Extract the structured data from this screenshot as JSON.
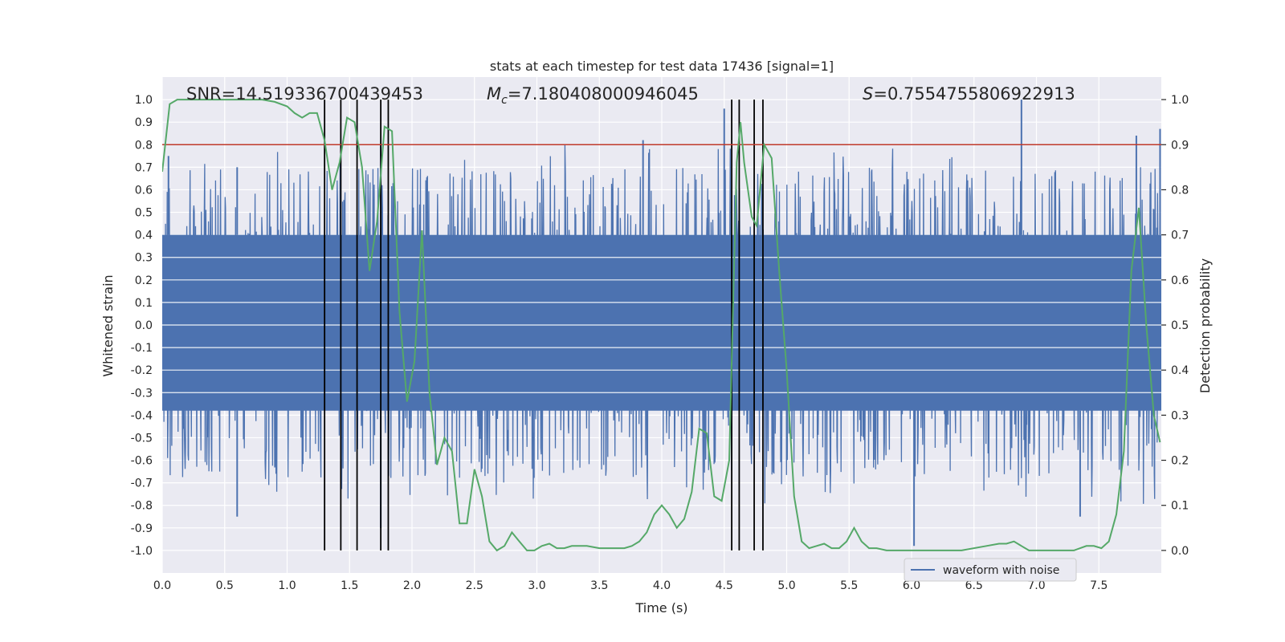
{
  "chart_data": {
    "type": "line",
    "title": "stats at each timestep for test data 17436 [signal=1]",
    "xlabel": "Time (s)",
    "ylabel": "Whitened strain",
    "y2label": "Detection probability",
    "xlim": [
      0.0,
      8.0
    ],
    "ylim": [
      -1.1,
      1.1
    ],
    "y2lim": [
      -0.05,
      1.05
    ],
    "x_ticks": [
      0.0,
      0.5,
      1.0,
      1.5,
      2.0,
      2.5,
      3.0,
      3.5,
      4.0,
      4.5,
      5.0,
      5.5,
      6.0,
      6.5,
      7.0,
      7.5
    ],
    "x_tick_labels": [
      "0.0",
      "0.5",
      "1.0",
      "1.5",
      "2.0",
      "2.5",
      "3.0",
      "3.5",
      "4.0",
      "4.5",
      "5.0",
      "5.5",
      "6.0",
      "6.5",
      "7.0",
      "7.5"
    ],
    "y_ticks": [
      1.0,
      0.9,
      0.8,
      0.7,
      0.6,
      0.5,
      0.4,
      0.3,
      0.2,
      0.1,
      0.0,
      -0.1,
      -0.2,
      -0.3,
      -0.4,
      -0.5,
      -0.6,
      -0.7,
      -0.8,
      -0.9,
      -1.0
    ],
    "y_tick_labels": [
      "1.0",
      "0.9",
      "0.8",
      "0.7",
      "0.6",
      "0.5",
      "0.4",
      "0.3",
      "0.2",
      "0.1",
      "0.0",
      "-0.1",
      "-0.2",
      "-0.3",
      "-0.4",
      "-0.5",
      "-0.6",
      "-0.7",
      "-0.8",
      "-0.9",
      "-1.0"
    ],
    "y2_ticks": [
      1.0,
      0.9,
      0.8,
      0.7,
      0.6,
      0.5,
      0.4,
      0.3,
      0.2,
      0.1,
      0.0
    ],
    "y2_tick_labels": [
      "1.0",
      "0.9",
      "0.8",
      "0.7",
      "0.6",
      "0.5",
      "0.4",
      "0.3",
      "0.2",
      "0.1",
      "0.0"
    ],
    "annotations": {
      "snr": "SNR=14.519336700439453",
      "mc_symbol": "M",
      "mc_sub": "c",
      "mc_value": "=7.180408000946045",
      "s_symbol": "S",
      "s_value": "=0.7554755806922913"
    },
    "threshold": {
      "value": 0.9,
      "axis": "y2",
      "color": "#c0392b"
    },
    "vertical_lines": [
      1.3,
      1.43,
      1.56,
      1.75,
      1.81,
      4.56,
      4.62,
      4.74,
      4.81
    ],
    "vertical_lines_y2_range": [
      0.0,
      1.0
    ],
    "waveform": {
      "name": "waveform with noise",
      "color": "#4c72b0",
      "dense_band": [
        -0.38,
        0.4
      ],
      "approx_envelope_peaks": [
        {
          "x": 0.05,
          "y": 0.75
        },
        {
          "x": 0.6,
          "y": 0.7
        },
        {
          "x": 1.75,
          "y": 0.8
        },
        {
          "x": 3.85,
          "y": 0.82
        },
        {
          "x": 4.5,
          "y": 0.96
        },
        {
          "x": 6.88,
          "y": 1.0
        },
        {
          "x": 7.8,
          "y": 0.84
        },
        {
          "x": 7.99,
          "y": 0.87
        },
        {
          "x": 0.6,
          "y": -0.85
        },
        {
          "x": 1.75,
          "y": -0.9
        },
        {
          "x": 6.02,
          "y": -0.98
        },
        {
          "x": 7.35,
          "y": -0.85
        }
      ]
    },
    "detection_probability": {
      "color": "#55a868",
      "x": [
        0.0,
        0.06,
        0.12,
        0.2,
        0.3,
        0.4,
        0.5,
        0.6,
        0.7,
        0.8,
        0.9,
        1.0,
        1.06,
        1.12,
        1.18,
        1.24,
        1.3,
        1.36,
        1.42,
        1.48,
        1.54,
        1.6,
        1.66,
        1.72,
        1.78,
        1.84,
        1.9,
        1.96,
        2.02,
        2.08,
        2.14,
        2.2,
        2.26,
        2.32,
        2.38,
        2.44,
        2.5,
        2.56,
        2.62,
        2.68,
        2.74,
        2.8,
        2.86,
        2.92,
        2.98,
        3.04,
        3.1,
        3.16,
        3.22,
        3.28,
        3.34,
        3.4,
        3.5,
        3.6,
        3.7,
        3.76,
        3.82,
        3.88,
        3.94,
        4.0,
        4.06,
        4.12,
        4.18,
        4.24,
        4.3,
        4.36,
        4.42,
        4.48,
        4.54,
        4.6,
        4.63,
        4.66,
        4.72,
        4.76,
        4.82,
        4.88,
        4.94,
        5.0,
        5.06,
        5.12,
        5.18,
        5.24,
        5.3,
        5.36,
        5.42,
        5.48,
        5.54,
        5.6,
        5.66,
        5.72,
        5.8,
        6.0,
        6.2,
        6.4,
        6.6,
        6.7,
        6.76,
        6.82,
        6.88,
        6.94,
        7.0,
        7.1,
        7.2,
        7.3,
        7.4,
        7.46,
        7.52,
        7.58,
        7.64,
        7.7,
        7.76,
        7.82,
        7.88,
        7.94,
        7.99
      ],
      "y": [
        0.84,
        0.99,
        1.0,
        1.0,
        1.0,
        1.0,
        1.0,
        1.0,
        1.0,
        1.0,
        0.995,
        0.985,
        0.97,
        0.96,
        0.97,
        0.97,
        0.91,
        0.8,
        0.86,
        0.96,
        0.95,
        0.85,
        0.62,
        0.73,
        0.94,
        0.93,
        0.53,
        0.33,
        0.42,
        0.71,
        0.35,
        0.19,
        0.25,
        0.22,
        0.06,
        0.06,
        0.18,
        0.12,
        0.02,
        0.0,
        0.01,
        0.04,
        0.02,
        0.0,
        0.0,
        0.01,
        0.015,
        0.005,
        0.005,
        0.01,
        0.01,
        0.01,
        0.005,
        0.005,
        0.005,
        0.01,
        0.02,
        0.04,
        0.08,
        0.1,
        0.08,
        0.05,
        0.07,
        0.13,
        0.27,
        0.26,
        0.12,
        0.11,
        0.2,
        0.86,
        0.95,
        0.86,
        0.74,
        0.72,
        0.9,
        0.87,
        0.62,
        0.4,
        0.12,
        0.02,
        0.005,
        0.01,
        0.015,
        0.005,
        0.005,
        0.02,
        0.05,
        0.02,
        0.005,
        0.005,
        0.0,
        0.0,
        0.0,
        0.0,
        0.01,
        0.015,
        0.015,
        0.02,
        0.01,
        0.0,
        0.0,
        0.0,
        0.0,
        0.0,
        0.01,
        0.01,
        0.005,
        0.02,
        0.08,
        0.22,
        0.62,
        0.76,
        0.5,
        0.3,
        0.24
      ]
    },
    "legend": {
      "position": "bottom-right",
      "entries": [
        "waveform with noise"
      ]
    },
    "grid": true
  }
}
